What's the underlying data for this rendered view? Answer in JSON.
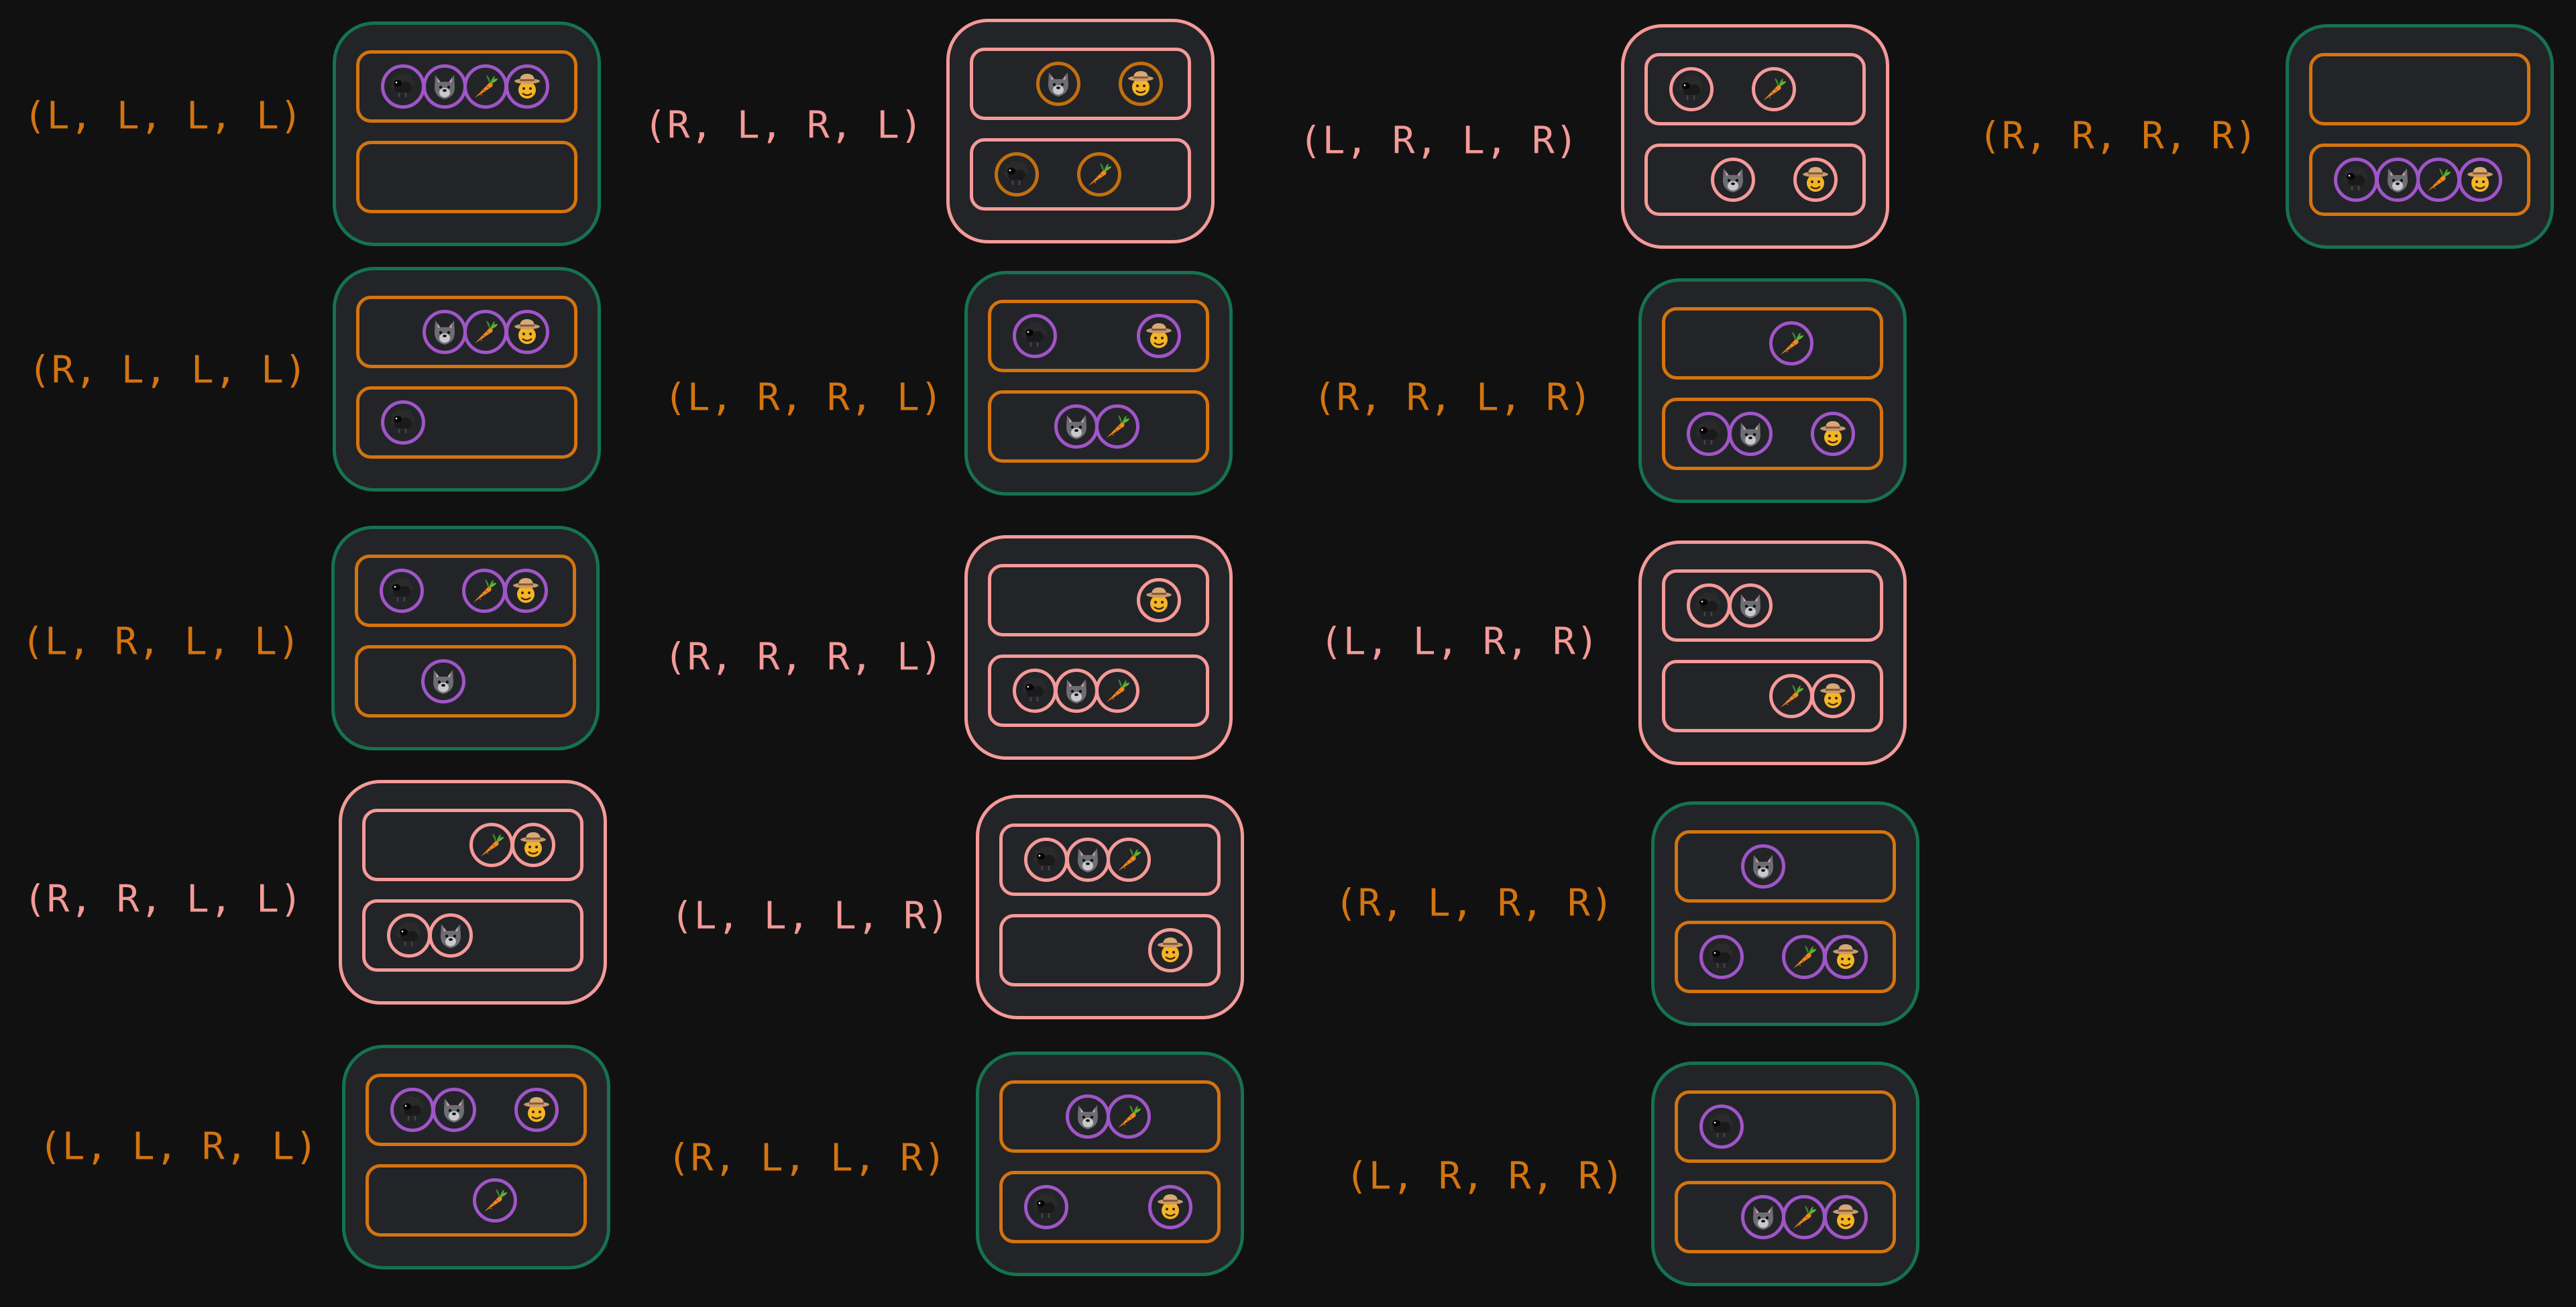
{
  "entity_icons": [
    "sheep-icon",
    "wolf-icon",
    "carrot-icon",
    "farmer-icon"
  ],
  "colors": {
    "background": "#111112",
    "card_fill": "#232428",
    "safe_border": "#15734f",
    "unsafe_border": "#f49a98",
    "safe_label": "#d4740f",
    "unsafe_label": "#f49a98",
    "token_ring": "#a055c8"
  },
  "states": [
    {
      "label": "(L, L, L, L)",
      "safe": true,
      "top": [
        "sheep",
        "wolf",
        "carrot",
        "farmer"
      ],
      "bottom": []
    },
    {
      "label": "(R, L, R, L)",
      "safe": false,
      "top": [
        "wolf",
        "farmer"
      ],
      "bottom": [
        "sheep",
        "carrot"
      ]
    },
    {
      "label": "(L, R, L, R)",
      "safe": false,
      "top": [
        "sheep",
        "carrot"
      ],
      "bottom": [
        "wolf",
        "farmer"
      ]
    },
    {
      "label": "(R, R, R, R)",
      "safe": true,
      "top": [],
      "bottom": [
        "sheep",
        "wolf",
        "carrot",
        "farmer"
      ]
    },
    {
      "label": "(R, L, L, L)",
      "safe": true,
      "top": [
        "wolf",
        "carrot",
        "farmer"
      ],
      "bottom": [
        "sheep"
      ]
    },
    {
      "label": "(L, R, R, L)",
      "safe": true,
      "top": [
        "sheep",
        "farmer"
      ],
      "bottom": [
        "wolf",
        "carrot"
      ]
    },
    {
      "label": "(R, R, L, R)",
      "safe": true,
      "top": [
        "carrot"
      ],
      "bottom": [
        "sheep",
        "wolf",
        "farmer"
      ]
    },
    {
      "label": "(L, R, L, L)",
      "safe": true,
      "top": [
        "sheep",
        "carrot",
        "farmer"
      ],
      "bottom": [
        "wolf"
      ]
    },
    {
      "label": "(R, R, R, L)",
      "safe": false,
      "top": [
        "farmer"
      ],
      "bottom": [
        "sheep",
        "wolf",
        "carrot"
      ]
    },
    {
      "label": "(L, L, R, R)",
      "safe": false,
      "top": [
        "sheep",
        "wolf"
      ],
      "bottom": [
        "carrot",
        "farmer"
      ]
    },
    {
      "label": "(R, R, L, L)",
      "safe": false,
      "top": [
        "carrot",
        "farmer"
      ],
      "bottom": [
        "sheep",
        "wolf"
      ]
    },
    {
      "label": "(L, L, L, R)",
      "safe": false,
      "top": [
        "sheep",
        "wolf",
        "carrot"
      ],
      "bottom": [
        "farmer"
      ]
    },
    {
      "label": "(R, L, R, R)",
      "safe": true,
      "top": [
        "wolf"
      ],
      "bottom": [
        "sheep",
        "carrot",
        "farmer"
      ]
    },
    {
      "label": "(L, L, R, L)",
      "safe": true,
      "top": [
        "sheep",
        "wolf",
        "farmer"
      ],
      "bottom": [
        "carrot"
      ]
    },
    {
      "label": "(R, L, L, R)",
      "safe": true,
      "top": [
        "wolf",
        "carrot"
      ],
      "bottom": [
        "sheep",
        "farmer"
      ]
    },
    {
      "label": "(L, R, R, R)",
      "safe": true,
      "top": [
        "sheep"
      ],
      "bottom": [
        "wolf",
        "carrot",
        "farmer"
      ]
    }
  ]
}
